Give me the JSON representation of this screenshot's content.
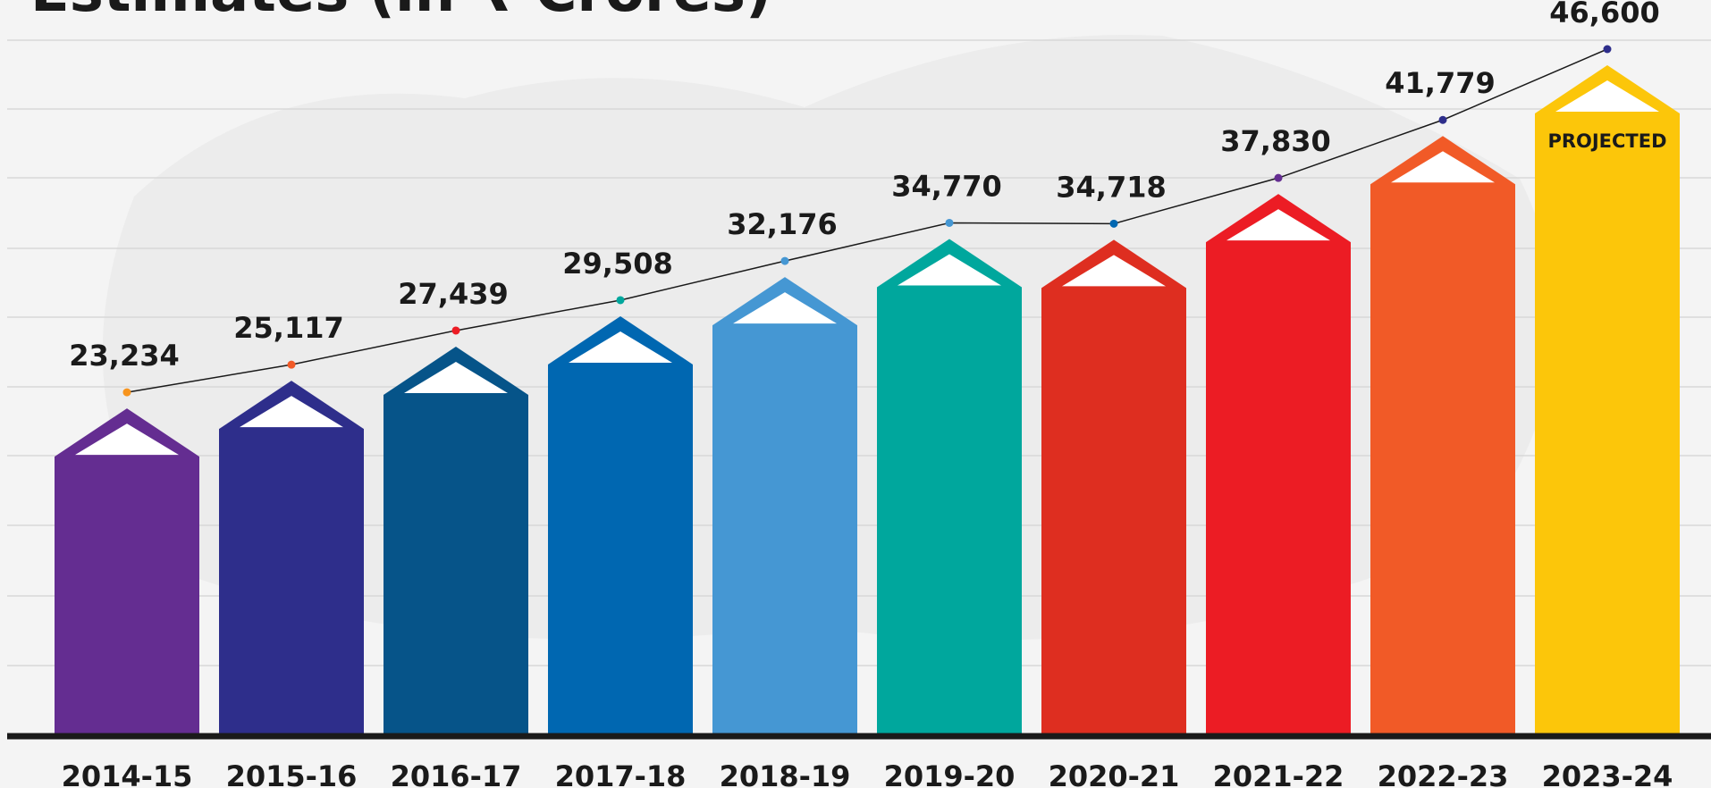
{
  "chart_data": {
    "type": "bar",
    "title": "Estimates (in ₹ Crores)",
    "categories": [
      "2014-15",
      "2015-16",
      "2016-17",
      "2017-18",
      "2018-19",
      "2019-20",
      "2020-21",
      "2021-22",
      "2022-23",
      "2023-24"
    ],
    "values": [
      23234,
      25117,
      27439,
      29508,
      32176,
      34770,
      34718,
      37830,
      41779,
      46600
    ],
    "value_labels": [
      "23,234",
      "25,117",
      "27,439",
      "29,508",
      "32,176",
      "34,770",
      "34,718",
      "37,830",
      "41,779",
      "46,600"
    ],
    "colors": [
      "#642d91",
      "#2e2e8b",
      "#065489",
      "#0067b1",
      "#4597d3",
      "#00a79d",
      "#de2e20",
      "#ec1c24",
      "#f15a27",
      "#fcc60a"
    ],
    "dot_colors": [
      "#f7941d",
      "#f15a27",
      "#ec1c24",
      "#00a79d",
      "#4597d3",
      "#4597d3",
      "#0067b1",
      "#642d91",
      "#2e2e8b",
      "#2e2e8b"
    ],
    "annotation": {
      "text": "PROJECTED",
      "category": "2023-24"
    },
    "grid": true
  }
}
